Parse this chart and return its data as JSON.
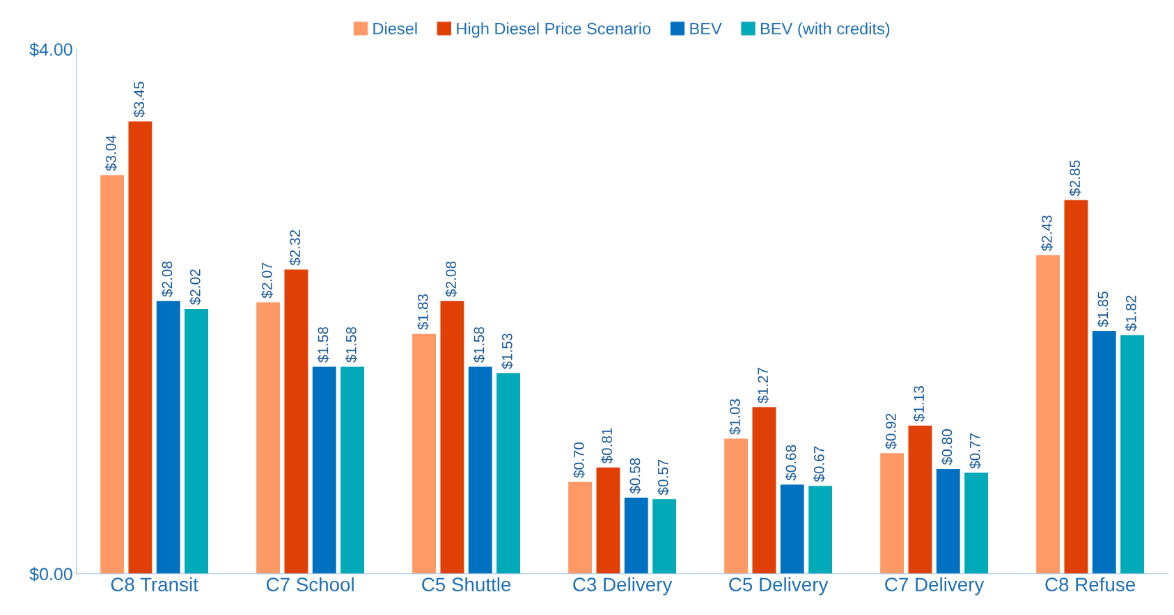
{
  "chart_data": {
    "type": "bar",
    "categories": [
      "C8 Transit",
      "C7 School",
      "C5 Shuttle",
      "C3 Delivery",
      "C5 Delivery",
      "C7 Delivery",
      "C8 Refuse"
    ],
    "series": [
      {
        "name": "Diesel",
        "color": "#ff9966",
        "values": [
          3.04,
          2.07,
          1.83,
          0.7,
          1.03,
          0.92,
          2.43
        ],
        "value_labels": [
          "$3.04",
          "$2.07",
          "$1.83",
          "$0.70",
          "$1.03",
          "$0.92",
          "$2.43"
        ]
      },
      {
        "name": "High Diesel Price Scenario",
        "color": "#e04006",
        "values": [
          3.45,
          2.32,
          2.08,
          0.81,
          1.27,
          1.13,
          2.85
        ],
        "value_labels": [
          "$3.45",
          "$2.32",
          "$2.08",
          "$0.81",
          "$1.27",
          "$1.13",
          "$2.85"
        ]
      },
      {
        "name": "BEV",
        "color": "#0070c0",
        "values": [
          2.08,
          1.58,
          1.58,
          0.58,
          0.68,
          0.8,
          1.85
        ],
        "value_labels": [
          "$2.08",
          "$1.58",
          "$1.58",
          "$0.58",
          "$0.68",
          "$0.80",
          "$1.85"
        ]
      },
      {
        "name": "BEV (with credits)",
        "color": "#00aab8",
        "values": [
          2.02,
          1.58,
          1.53,
          0.57,
          0.67,
          0.77,
          1.82
        ],
        "value_labels": [
          "$2.02",
          "$1.58",
          "$1.53",
          "$0.57",
          "$0.67",
          "$0.77",
          "$1.82"
        ]
      }
    ],
    "ylim": [
      0,
      4
    ],
    "yticks": [
      {
        "value": 0,
        "label": "$0.00"
      },
      {
        "value": 4,
        "label": "$4.00"
      }
    ],
    "grid": false,
    "legend": "top"
  }
}
